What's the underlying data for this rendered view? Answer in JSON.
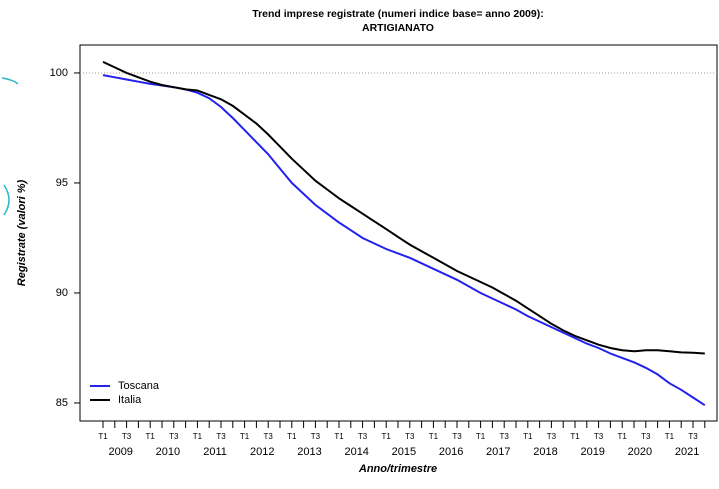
{
  "chart_data": {
    "type": "line",
    "title": "Trend imprese registrate (numeri indice base= anno 2009):",
    "subtitle": "ARTIGIANATO",
    "y_label": "Registrate (valori %)",
    "x_label": "Anno/trimestre",
    "categories": [
      "T1",
      null,
      "T3",
      null,
      "T1",
      null,
      "T3",
      null,
      "T1",
      null,
      "T3",
      null,
      "T1",
      null,
      "T3",
      null,
      "T1",
      null,
      "T3",
      null,
      "T1",
      null,
      "T3",
      null,
      "T1",
      null,
      "T3",
      null,
      "T1",
      null,
      "T3",
      null,
      "T1",
      null,
      "T3",
      null,
      "T1",
      null,
      "T3",
      null,
      "T1",
      null,
      "T3",
      null,
      "T1",
      null,
      "T3",
      null,
      "T1",
      null,
      "T3",
      null
    ],
    "year_labels": [
      "2009",
      "2010",
      "2011",
      "2012",
      "2013",
      "2014",
      "2015",
      "2016",
      "2017",
      "2018",
      "2019",
      "2020",
      "2021"
    ],
    "series": [
      {
        "name": "Toscana",
        "color": "#2222ee",
        "values": [
          99.9,
          99.8,
          99.7,
          99.6,
          99.5,
          99.43,
          99.35,
          99.25,
          99.1,
          98.85,
          98.45,
          97.95,
          97.4,
          96.85,
          96.3,
          95.65,
          95.0,
          94.5,
          94.0,
          93.6,
          93.2,
          92.85,
          92.5,
          92.25,
          92.0,
          91.8,
          91.6,
          91.35,
          91.1,
          90.85,
          90.6,
          90.3,
          90.0,
          89.75,
          89.5,
          89.25,
          88.95,
          88.7,
          88.45,
          88.2,
          87.95,
          87.7,
          87.5,
          87.25,
          87.05,
          86.85,
          86.6,
          86.3,
          85.9,
          85.6,
          85.25,
          84.9
        ]
      },
      {
        "name": "Italia",
        "color": "#000000",
        "values": [
          100.5,
          100.25,
          100.0,
          99.8,
          99.6,
          99.45,
          99.35,
          99.25,
          99.2,
          99.0,
          98.8,
          98.5,
          98.1,
          97.7,
          97.2,
          96.65,
          96.1,
          95.6,
          95.1,
          94.7,
          94.3,
          93.95,
          93.6,
          93.25,
          92.9,
          92.55,
          92.2,
          91.9,
          91.6,
          91.3,
          91.0,
          90.75,
          90.5,
          90.25,
          89.95,
          89.65,
          89.3,
          88.95,
          88.6,
          88.3,
          88.05,
          87.85,
          87.65,
          87.5,
          87.4,
          87.35,
          87.4,
          87.4,
          87.35,
          87.3,
          87.28,
          87.25
        ]
      }
    ],
    "reference_line": 100,
    "ylim": [
      84.18,
      101.27
    ],
    "yticks": [
      85,
      90,
      95,
      100
    ],
    "legend": "bottom-left"
  }
}
